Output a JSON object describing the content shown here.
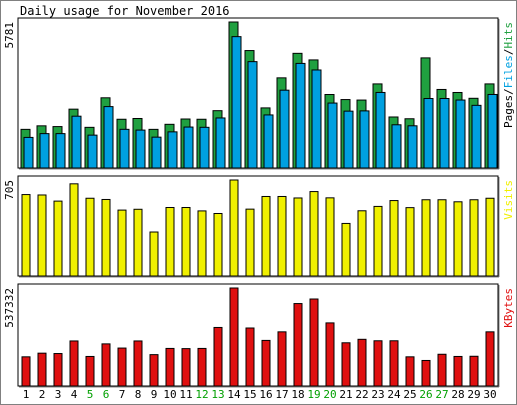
{
  "chart_data": {
    "type": "bar",
    "title": "Daily usage for November 2016",
    "categories": [
      "1",
      "2",
      "3",
      "4",
      "5",
      "6",
      "7",
      "8",
      "9",
      "10",
      "11",
      "12",
      "13",
      "14",
      "15",
      "16",
      "17",
      "18",
      "19",
      "20",
      "21",
      "22",
      "23",
      "24",
      "25",
      "26",
      "27",
      "28",
      "29",
      "30"
    ],
    "weekend_days": [
      "5",
      "6",
      "12",
      "13",
      "19",
      "20",
      "26",
      "27"
    ],
    "panels": [
      {
        "ylabel": "Pages/Files/Hits",
        "ylabel_parts": [
          "Pages",
          "Files",
          "Hits"
        ],
        "max_label": "5781",
        "ymax": 5781,
        "series": [
          {
            "name": "Hits",
            "color": "#20a040",
            "values": [
              1530,
              1670,
              1640,
              2330,
              1610,
              2780,
              1930,
              1960,
              1530,
              1730,
              1940,
              1930,
              2270,
              5781,
              4650,
              2380,
              3570,
              4540,
              4280,
              2910,
              2710,
              2690,
              3330,
              2020,
              1950,
              4360,
              3110,
              2990,
              2760,
              3330
            ]
          },
          {
            "name": "Files",
            "color": "#00a0e0",
            "values": [
              1330,
              1480,
              1480,
              2170,
              1420,
              2550,
              1650,
              1620,
              1340,
              1550,
              1740,
              1730,
              2100,
              5320,
              4330,
              2220,
              3200,
              4260,
              4000,
              2690,
              2370,
              2380,
              3110,
              1830,
              1790,
              2870,
              2870,
              2810,
              2600,
              3030
            ]
          }
        ]
      },
      {
        "ylabel": "Visits",
        "max_label": "705",
        "ymax": 705,
        "series": [
          {
            "name": "Visits",
            "color": "#f0f000",
            "values": [
              598,
              595,
              550,
              677,
              571,
              562,
              484,
              490,
              323,
              503,
              503,
              478,
              459,
              705,
              491,
              584,
              584,
              573,
              620,
              574,
              386,
              479,
              511,
              554,
              502,
              560,
              560,
              545,
              560,
              571
            ]
          }
        ]
      },
      {
        "ylabel": "KBytes",
        "max_label": "537332",
        "ymax": 537332,
        "series": [
          {
            "name": "KBytes",
            "color": "#e01010",
            "values": [
              160000,
              180000,
              178000,
              247000,
              162000,
              231000,
              208000,
              247000,
              172000,
              206000,
              205000,
              206000,
              321000,
              537332,
              318000,
              250000,
              297000,
              452000,
              477000,
              346000,
              237000,
              256000,
              248000,
              248000,
              160000,
              140000,
              174000,
              162000,
              163000,
              297000
            ]
          }
        ]
      }
    ]
  }
}
